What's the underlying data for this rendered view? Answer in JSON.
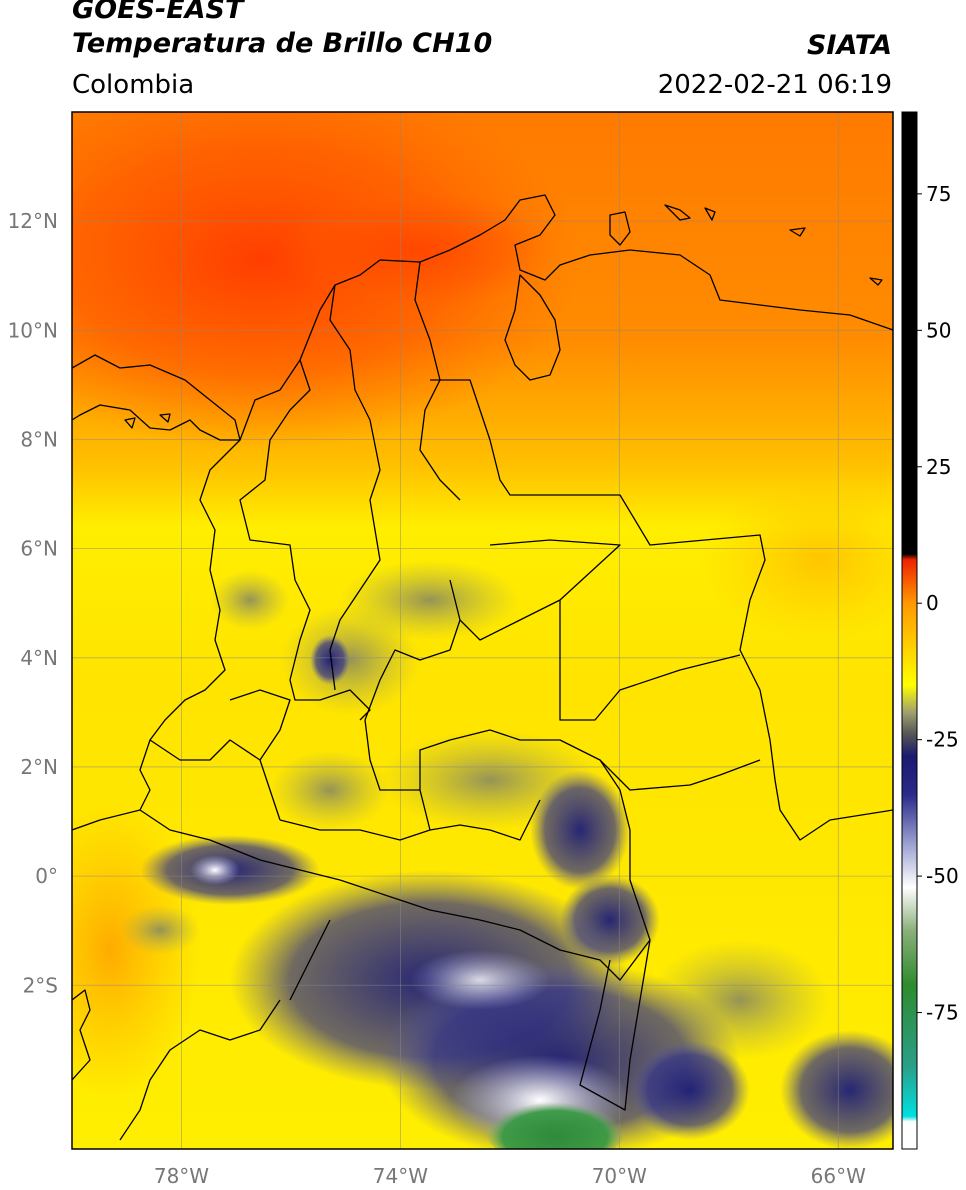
{
  "header": {
    "satellite": "GOES-EAST",
    "product": "Temperatura de Brillo CH10",
    "region": "Colombia",
    "agency": "SIATA",
    "datetime": "2022-02-21 06:19"
  },
  "map": {
    "lon_range": [
      -80,
      -65
    ],
    "lat_range": [
      -5,
      14
    ],
    "lat_ticks": [
      {
        "value": 12,
        "label": "12°N"
      },
      {
        "value": 10,
        "label": "10°N"
      },
      {
        "value": 8,
        "label": "8°N"
      },
      {
        "value": 6,
        "label": "6°N"
      },
      {
        "value": 4,
        "label": "4°N"
      },
      {
        "value": 2,
        "label": "2°N"
      },
      {
        "value": 0,
        "label": "0°"
      },
      {
        "value": -2,
        "label": "2°S"
      }
    ],
    "lon_ticks": [
      {
        "value": -78,
        "label": "78°W"
      },
      {
        "value": -74,
        "label": "74°W"
      },
      {
        "value": -70,
        "label": "70°W"
      },
      {
        "value": -66,
        "label": "66°W"
      }
    ],
    "gridlines": true
  },
  "colorbar": {
    "range": [
      -100,
      90
    ],
    "ticks": [
      {
        "value": 75,
        "label": "75"
      },
      {
        "value": 50,
        "label": "50"
      },
      {
        "value": 25,
        "label": "25"
      },
      {
        "value": 0,
        "label": "0"
      },
      {
        "value": -25,
        "label": "-25"
      },
      {
        "value": -50,
        "label": "-50"
      },
      {
        "value": -75,
        "label": "-75"
      }
    ],
    "stops": [
      {
        "value": -100,
        "color": "#ffffff"
      },
      {
        "value": -95,
        "color": "#ffffff"
      },
      {
        "value": -94,
        "color": "#00e0e0"
      },
      {
        "value": -85,
        "color": "#2aa08a"
      },
      {
        "value": -70,
        "color": "#2e8b2e"
      },
      {
        "value": -60,
        "color": "#8ab07a"
      },
      {
        "value": -52,
        "color": "#ffffff"
      },
      {
        "value": -44,
        "color": "#9aa0d0"
      },
      {
        "value": -35,
        "color": "#2a2a8a"
      },
      {
        "value": -28,
        "color": "#1a1a70"
      },
      {
        "value": -24,
        "color": "#555555"
      },
      {
        "value": -20,
        "color": "#a0a070"
      },
      {
        "value": -15,
        "color": "#ffff00"
      },
      {
        "value": -8,
        "color": "#ffd000"
      },
      {
        "value": 0,
        "color": "#ff9900"
      },
      {
        "value": 8,
        "color": "#ee2200"
      },
      {
        "value": 9,
        "color": "#000000"
      },
      {
        "value": 90,
        "color": "#000000"
      }
    ]
  }
}
